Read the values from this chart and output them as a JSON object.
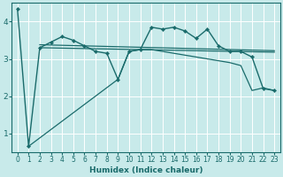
{
  "xlabel": "Humidex (Indice chaleur)",
  "background_color": "#c8eaea",
  "grid_color": "#ffffff",
  "line_color": "#1a6b6b",
  "xlim": [
    -0.5,
    23.5
  ],
  "ylim": [
    0.5,
    4.5
  ],
  "xticks": [
    0,
    1,
    2,
    3,
    4,
    5,
    6,
    7,
    8,
    9,
    10,
    11,
    12,
    13,
    14,
    15,
    16,
    17,
    18,
    19,
    20,
    21,
    22,
    23
  ],
  "yticks": [
    1,
    2,
    3,
    4
  ],
  "figsize": [
    3.2,
    2.0
  ],
  "dpi": 100,
  "main_line": {
    "x": [
      0,
      1,
      2,
      3,
      4,
      5,
      6,
      7,
      8,
      9,
      10,
      11,
      12,
      13,
      14,
      15,
      16,
      17,
      18,
      19,
      20,
      21,
      22,
      23
    ],
    "y": [
      4.35,
      0.65,
      3.3,
      3.45,
      3.6,
      3.5,
      3.35,
      3.2,
      3.15,
      2.45,
      3.2,
      3.25,
      3.85,
      3.8,
      3.85,
      3.75,
      3.55,
      3.8,
      3.35,
      3.2,
      3.2,
      3.05,
      2.2,
      2.15
    ]
  },
  "trend_line1": {
    "x": [
      2,
      23
    ],
    "y": [
      3.38,
      3.22
    ]
  },
  "trend_line2": {
    "x": [
      2,
      23
    ],
    "y": [
      3.3,
      3.18
    ]
  },
  "diagonal_line": {
    "x": [
      1,
      9,
      10,
      11,
      12,
      13,
      14,
      15,
      16,
      17,
      18,
      19,
      20,
      21,
      22,
      23
    ],
    "y": [
      0.65,
      2.45,
      3.2,
      3.25,
      3.25,
      3.2,
      3.15,
      3.1,
      3.05,
      3.0,
      2.95,
      2.9,
      2.82,
      2.15,
      2.22,
      2.15
    ]
  }
}
